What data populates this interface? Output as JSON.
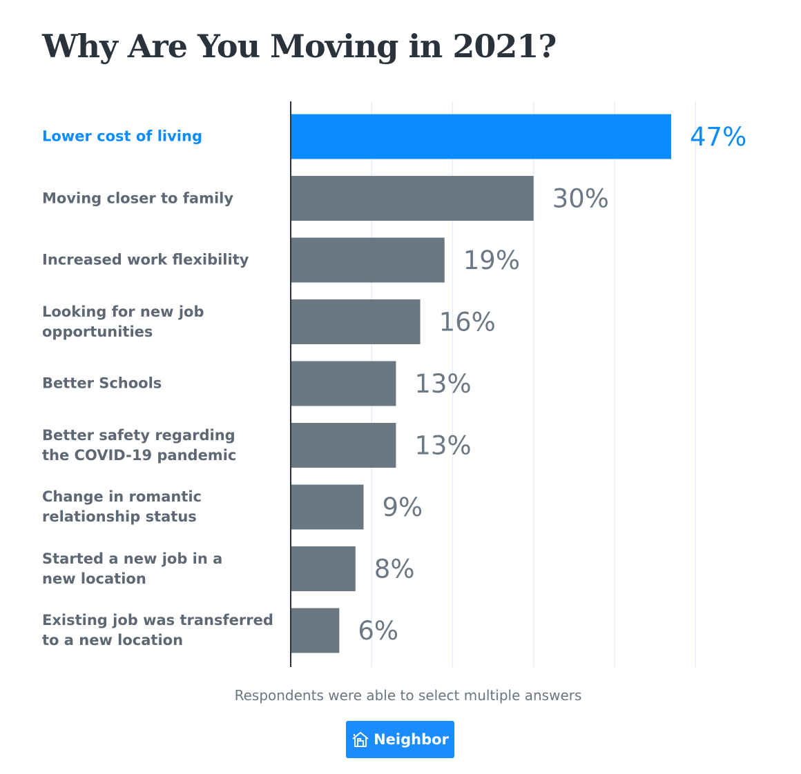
{
  "chart_data": {
    "type": "bar",
    "orientation": "horizontal",
    "title": "Why Are You Moving in 2021?",
    "categories": [
      "Lower cost of living",
      "Moving closer to family",
      "Increased work flexibility",
      "Looking for new job opportunities",
      "Better Schools",
      "Better safety regarding the COVID-19 pandemic",
      "Change in romantic relationship status",
      "Started a new job in a new location",
      "Existing job was transferred to a new location"
    ],
    "category_lines": [
      [
        "Lower cost of living"
      ],
      [
        "Moving closer to family"
      ],
      [
        "Increased work flexibility"
      ],
      [
        "Looking for new job",
        "opportunities"
      ],
      [
        "Better Schools"
      ],
      [
        "Better safety regarding",
        "the COVID-19 pandemic"
      ],
      [
        "Change in romantic",
        "relationship status"
      ],
      [
        "Started a new job in a",
        "new location"
      ],
      [
        "Existing job was transferred",
        "to a new location"
      ]
    ],
    "values": [
      47,
      30,
      19,
      16,
      13,
      13,
      9,
      8,
      6
    ],
    "data_labels": [
      "47%",
      "30%",
      "19%",
      "16%",
      "13%",
      "13%",
      "9%",
      "8%",
      "6%"
    ],
    "highlight_index": 0,
    "xlim": [
      0,
      50
    ],
    "gridlines": [
      10,
      20,
      30,
      40,
      50
    ],
    "grid": true,
    "xlabel": "",
    "ylabel": "",
    "colors": {
      "highlight": "#0a8cff",
      "default": "#6a7782",
      "grid": "#e4eef8",
      "axis": "#2a323c"
    }
  },
  "footnote": "Respondents were able to select multiple answers",
  "logo": {
    "text": "Neighbor",
    "icon": "house-icon",
    "color": "#1a8cff"
  }
}
